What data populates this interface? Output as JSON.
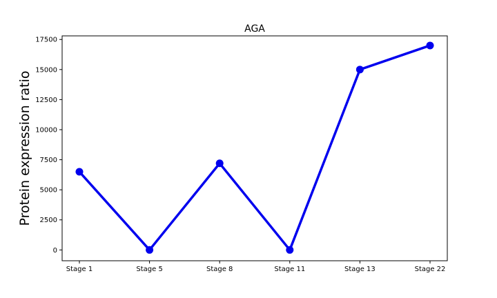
{
  "chart_data": {
    "type": "line",
    "title": "AGA",
    "xlabel": "",
    "ylabel": "Protein expression ratio",
    "categories": [
      "Stage 1",
      "Stage 5",
      "Stage 8",
      "Stage 11",
      "Stage 13",
      "Stage 22"
    ],
    "series": [
      {
        "values": [
          6500,
          0,
          7200,
          0,
          15000,
          17000
        ],
        "color": "#0000ee"
      }
    ],
    "ylim": [
      -900,
      17800
    ],
    "yticks": [
      0,
      2500,
      5000,
      7500,
      10000,
      12500,
      15000,
      17500
    ],
    "grid": false,
    "legend": "none"
  }
}
